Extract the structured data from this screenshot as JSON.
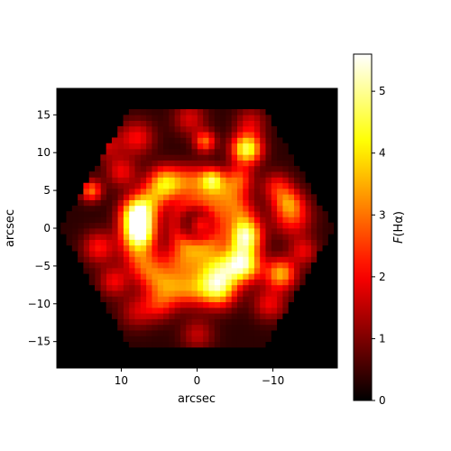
{
  "chart_data": {
    "type": "heatmap",
    "title": "",
    "xlabel": "arcsec",
    "ylabel": "arcsec",
    "xlim": [
      18.5,
      -18.5
    ],
    "ylim": [
      -18.5,
      18.5
    ],
    "x_ticks": [
      {
        "value": 10,
        "label": "10"
      },
      {
        "value": 0,
        "label": "0"
      },
      {
        "value": -10,
        "label": "−10"
      }
    ],
    "y_ticks": [
      {
        "value": 15,
        "label": "15"
      },
      {
        "value": 10,
        "label": "10"
      },
      {
        "value": 5,
        "label": "5"
      },
      {
        "value": 0,
        "label": "0"
      },
      {
        "value": -5,
        "label": "−5"
      },
      {
        "value": -10,
        "label": "−10"
      },
      {
        "value": -15,
        "label": "−15"
      }
    ],
    "colorbar": {
      "label_prefix": "F",
      "label_suffix": "(Hα)",
      "range": [
        0,
        5.6
      ],
      "ticks": [
        {
          "value": 0,
          "label": "0"
        },
        {
          "value": 1,
          "label": "1"
        },
        {
          "value": 2,
          "label": "2"
        },
        {
          "value": 3,
          "label": "3"
        },
        {
          "value": 4,
          "label": "4"
        },
        {
          "value": 5,
          "label": "5"
        }
      ],
      "colormap": "hot"
    },
    "field_shape": "hexagon",
    "field_circumradius": 18,
    "background_value": 0,
    "features": [
      {
        "kind": "ring",
        "x": 1,
        "y": -1,
        "radius": 7,
        "width": 1.6,
        "peak": 2.7
      },
      {
        "kind": "ring",
        "x": 0,
        "y": 0.5,
        "radius": 3,
        "width": 0.9,
        "peak": 1.2
      },
      {
        "kind": "blob",
        "x": -0.5,
        "y": 0.5,
        "sigma": 1.0,
        "peak": 1.6
      },
      {
        "kind": "blob",
        "x": 8,
        "y": 2,
        "sigma": 1.5,
        "peak": 3.0
      },
      {
        "kind": "blob",
        "x": 7.5,
        "y": -0.5,
        "sigma": 1.4,
        "peak": 3.0
      },
      {
        "kind": "blob",
        "x": 2,
        "y": -4,
        "sigma": 1.8,
        "peak": 2.2
      },
      {
        "kind": "blob",
        "x": -2,
        "y": -4.5,
        "sigma": 2.0,
        "peak": 2.5
      },
      {
        "kind": "blob",
        "x": -6.5,
        "y": -5,
        "sigma": 1.5,
        "peak": 2.8
      },
      {
        "kind": "blob",
        "x": -6.5,
        "y": -1,
        "sigma": 1.4,
        "peak": 2.4
      },
      {
        "kind": "blob",
        "x": -11,
        "y": -6,
        "sigma": 1.4,
        "peak": 3.2
      },
      {
        "kind": "blob",
        "x": -6.5,
        "y": 10.5,
        "sigma": 1.4,
        "peak": 4.3
      },
      {
        "kind": "blob",
        "x": -5.5,
        "y": 6.5,
        "sigma": 1.3,
        "peak": 2.0
      },
      {
        "kind": "blob",
        "x": -1,
        "y": 11.5,
        "sigma": 1.0,
        "peak": 2.5
      },
      {
        "kind": "blob",
        "x": -12.5,
        "y": 1.5,
        "sigma": 1.8,
        "peak": 2.0
      },
      {
        "kind": "blob",
        "x": -12,
        "y": 3.5,
        "sigma": 1.3,
        "peak": 1.8
      },
      {
        "kind": "blob",
        "x": 13,
        "y": -2.5,
        "sigma": 1.5,
        "peak": 1.8
      },
      {
        "kind": "blob",
        "x": 14,
        "y": 5,
        "sigma": 1.0,
        "peak": 2.6
      },
      {
        "kind": "blob",
        "x": 10,
        "y": 7.5,
        "sigma": 1.4,
        "peak": 1.6
      },
      {
        "kind": "blob",
        "x": 4.5,
        "y": 6.5,
        "sigma": 1.4,
        "peak": 1.6
      },
      {
        "kind": "blob",
        "x": -2,
        "y": 6.5,
        "sigma": 1.0,
        "peak": 2.2
      },
      {
        "kind": "blob",
        "x": 8,
        "y": 12,
        "sigma": 1.6,
        "peak": 1.7
      },
      {
        "kind": "blob",
        "x": 1,
        "y": 14.5,
        "sigma": 1.5,
        "peak": 1.4
      },
      {
        "kind": "blob",
        "x": -7,
        "y": 14,
        "sigma": 1.4,
        "peak": 1.3
      },
      {
        "kind": "blob",
        "x": 5,
        "y": -10,
        "sigma": 1.5,
        "peak": 1.6
      },
      {
        "kind": "blob",
        "x": -3,
        "y": -8.5,
        "sigma": 1.6,
        "peak": 2.2
      },
      {
        "kind": "blob",
        "x": -9.5,
        "y": -10,
        "sigma": 1.5,
        "peak": 1.6
      },
      {
        "kind": "blob",
        "x": 8,
        "y": -11,
        "sigma": 1.6,
        "peak": 1.2
      },
      {
        "kind": "blob",
        "x": 0,
        "y": -14,
        "sigma": 1.5,
        "peak": 1.2
      },
      {
        "kind": "blob",
        "x": -14,
        "y": -3,
        "sigma": 1.3,
        "peak": 1.5
      },
      {
        "kind": "blob",
        "x": 11,
        "y": -7,
        "sigma": 1.4,
        "peak": 1.6
      },
      {
        "kind": "blob",
        "x": -10.5,
        "y": 5.5,
        "sigma": 1.4,
        "peak": 1.7
      },
      {
        "kind": "blob",
        "x": 12,
        "y": 11,
        "sigma": 1.4,
        "peak": 1.2
      }
    ]
  }
}
